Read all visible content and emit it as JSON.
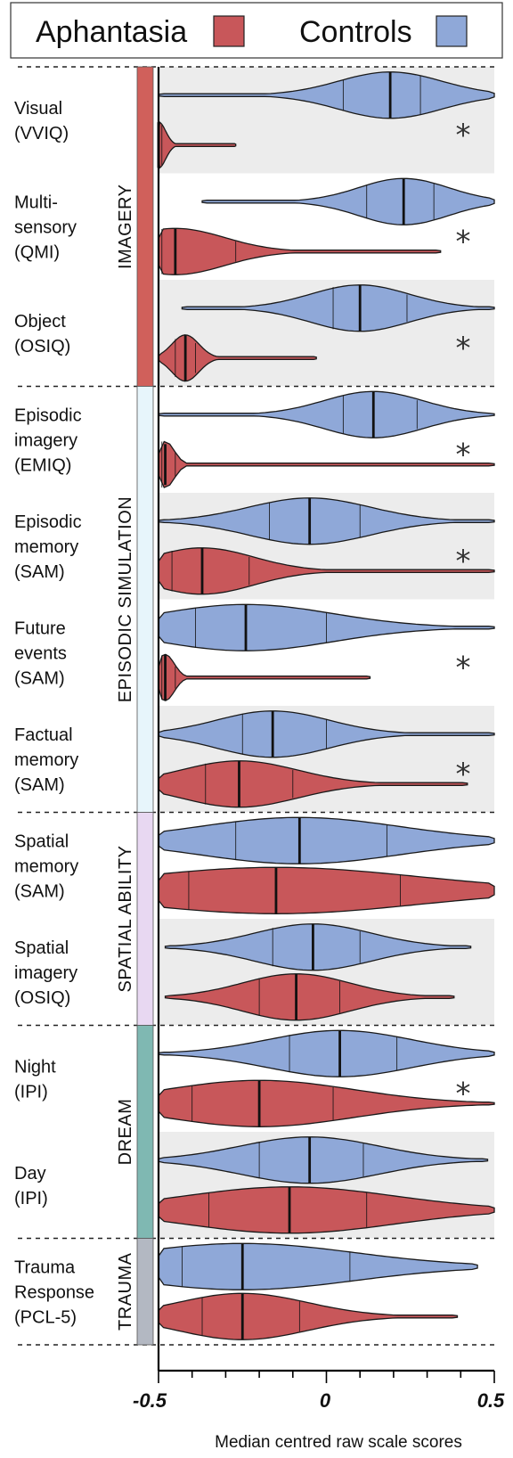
{
  "chart_data": {
    "type": "violin",
    "xlabel": "Median centred raw scale scores",
    "xlim": [
      -0.5,
      0.5
    ],
    "x_ticks": [
      "-0.5",
      "0",
      "0.5"
    ],
    "legend": [
      {
        "name": "Aphantasia",
        "color": "#c8575a"
      },
      {
        "name": "Controls",
        "color": "#8fa8d8"
      }
    ],
    "groups": [
      {
        "name": "IMAGERY",
        "color": "#d0605b"
      },
      {
        "name": "EPISODIC SIMULATION",
        "color": "#e7f5fb"
      },
      {
        "name": "SPATIAL ABILITY",
        "color": "#e8d8f2"
      },
      {
        "name": "DREAM",
        "color": "#7fb8b2"
      },
      {
        "name": "TRAUMA",
        "color": "#b3b8c2"
      }
    ],
    "measures": [
      {
        "group": "IMAGERY",
        "label": [
          "Visual",
          "(VVIQ)"
        ],
        "significant": true,
        "shaded": true,
        "controls": {
          "min": -0.5,
          "max": 0.5,
          "q1": 0.05,
          "median": 0.19,
          "q3": 0.28
        },
        "aphantasia": {
          "min": -0.5,
          "max": -0.27,
          "q1": -0.5,
          "median": -0.5,
          "q3": -0.49
        }
      },
      {
        "group": "IMAGERY",
        "label": [
          "Multi-",
          "sensory",
          "(QMI)"
        ],
        "significant": true,
        "shaded": false,
        "controls": {
          "min": -0.37,
          "max": 0.5,
          "q1": 0.12,
          "median": 0.23,
          "q3": 0.32
        },
        "aphantasia": {
          "min": -0.5,
          "max": 0.34,
          "q1": -0.49,
          "median": -0.45,
          "q3": -0.27
        }
      },
      {
        "group": "IMAGERY",
        "label": [
          "Object",
          "(OSIQ)"
        ],
        "significant": true,
        "shaded": true,
        "controls": {
          "min": -0.43,
          "max": 0.5,
          "q1": 0.02,
          "median": 0.1,
          "q3": 0.24
        },
        "aphantasia": {
          "min": -0.5,
          "max": -0.03,
          "q1": -0.45,
          "median": -0.42,
          "q3": -0.39
        }
      },
      {
        "group": "EPISODIC SIMULATION",
        "label": [
          "Episodic",
          "imagery",
          "(EMIQ)"
        ],
        "significant": true,
        "shaded": false,
        "controls": {
          "min": -0.5,
          "max": 0.5,
          "q1": 0.05,
          "median": 0.14,
          "q3": 0.27
        },
        "aphantasia": {
          "min": -0.5,
          "max": 0.5,
          "q1": -0.49,
          "median": -0.48,
          "q3": -0.45
        }
      },
      {
        "group": "EPISODIC SIMULATION",
        "label": [
          "Episodic",
          "memory",
          "(SAM)"
        ],
        "significant": true,
        "shaded": true,
        "controls": {
          "min": -0.5,
          "max": 0.5,
          "q1": -0.17,
          "median": -0.05,
          "q3": 0.1
        },
        "aphantasia": {
          "min": -0.5,
          "max": 0.5,
          "q1": -0.46,
          "median": -0.37,
          "q3": -0.23
        }
      },
      {
        "group": "EPISODIC SIMULATION",
        "label": [
          "Future",
          "events",
          "(SAM)"
        ],
        "significant": true,
        "shaded": false,
        "controls": {
          "min": -0.5,
          "max": 0.5,
          "q1": -0.39,
          "median": -0.24,
          "q3": 0.0
        },
        "aphantasia": {
          "min": -0.5,
          "max": 0.13,
          "q1": -0.49,
          "median": -0.48,
          "q3": -0.45
        }
      },
      {
        "group": "EPISODIC SIMULATION",
        "label": [
          "Factual",
          "memory",
          "(SAM)"
        ],
        "significant": true,
        "shaded": true,
        "controls": {
          "min": -0.5,
          "max": 0.5,
          "q1": -0.25,
          "median": -0.16,
          "q3": 0.0
        },
        "aphantasia": {
          "min": -0.5,
          "max": 0.42,
          "q1": -0.36,
          "median": -0.26,
          "q3": -0.1
        }
      },
      {
        "group": "SPATIAL ABILITY",
        "label": [
          "Spatial",
          "memory",
          "(SAM)"
        ],
        "significant": false,
        "shaded": false,
        "controls": {
          "min": -0.5,
          "max": 0.5,
          "q1": -0.27,
          "median": -0.08,
          "q3": 0.18
        },
        "aphantasia": {
          "min": -0.5,
          "max": 0.5,
          "q1": -0.41,
          "median": -0.15,
          "q3": 0.22
        }
      },
      {
        "group": "SPATIAL ABILITY",
        "label": [
          "Spatial",
          "imagery",
          "(OSIQ)"
        ],
        "significant": false,
        "shaded": true,
        "controls": {
          "min": -0.48,
          "max": 0.43,
          "q1": -0.16,
          "median": -0.04,
          "q3": 0.1
        },
        "aphantasia": {
          "min": -0.48,
          "max": 0.38,
          "q1": -0.2,
          "median": -0.09,
          "q3": 0.04
        }
      },
      {
        "group": "DREAM",
        "label": [
          "Night",
          "(IPI)"
        ],
        "significant": true,
        "shaded": false,
        "controls": {
          "min": -0.5,
          "max": 0.5,
          "q1": -0.11,
          "median": 0.04,
          "q3": 0.21
        },
        "aphantasia": {
          "min": -0.5,
          "max": 0.5,
          "q1": -0.4,
          "median": -0.2,
          "q3": 0.02
        }
      },
      {
        "group": "DREAM",
        "label": [
          "Day",
          "(IPI)"
        ],
        "significant": false,
        "shaded": true,
        "controls": {
          "min": -0.5,
          "max": 0.48,
          "q1": -0.2,
          "median": -0.05,
          "q3": 0.11
        },
        "aphantasia": {
          "min": -0.5,
          "max": 0.5,
          "q1": -0.35,
          "median": -0.11,
          "q3": 0.12
        }
      },
      {
        "group": "TRAUMA",
        "label": [
          "Trauma",
          "Response",
          "(PCL-5)"
        ],
        "significant": false,
        "shaded": false,
        "controls": {
          "min": -0.5,
          "max": 0.45,
          "q1": -0.43,
          "median": -0.25,
          "q3": 0.07
        },
        "aphantasia": {
          "min": -0.5,
          "max": 0.39,
          "q1": -0.37,
          "median": -0.25,
          "q3": -0.08
        }
      }
    ]
  }
}
